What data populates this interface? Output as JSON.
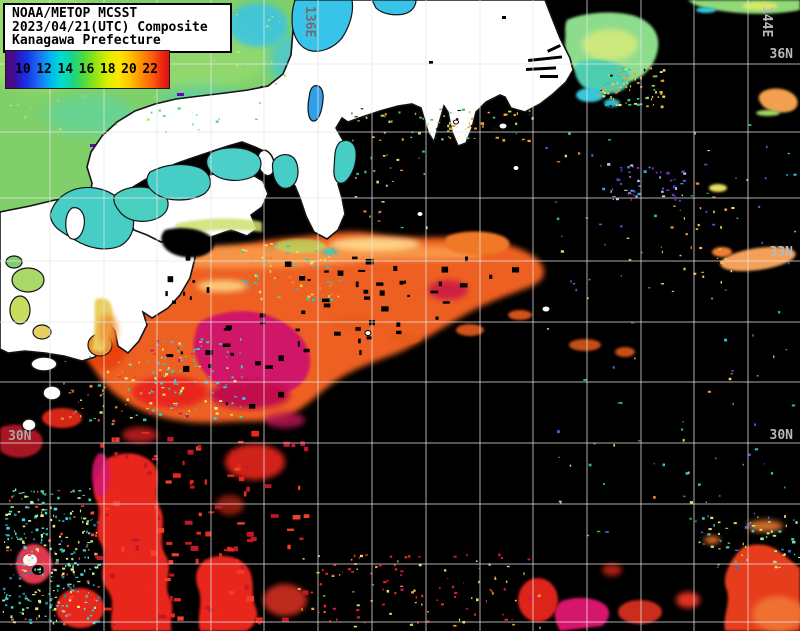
{
  "header": {
    "line1": "NOAA/METOP MCSST",
    "line2": "2023/04/21(UTC) Composite",
    "line3": "Kanagawa Prefecture"
  },
  "legend": {
    "tick_values": [
      "10",
      "12",
      "14",
      "16",
      "18",
      "20",
      "22"
    ]
  },
  "grid": {
    "lon_136": "136E",
    "lon_144": "144E",
    "lat_36": "36N",
    "lat_33": "33N",
    "lat_30_right": "30N",
    "lat_30_left": "30N"
  },
  "colors": {
    "land": "#ffffff",
    "no_data_sea": "#000000",
    "grid_line": "#d0d0d0",
    "sea_of_japan_green": "#7fd06a",
    "inland_sea_cyan": "#45cdc6",
    "kuroshio_orange": "#ee6120",
    "warm_core_magenta": "#d01468",
    "warm_red": "#e8251c",
    "scale_min_purple": "#4a0b84",
    "scale_max_red": "#dd1010"
  }
}
